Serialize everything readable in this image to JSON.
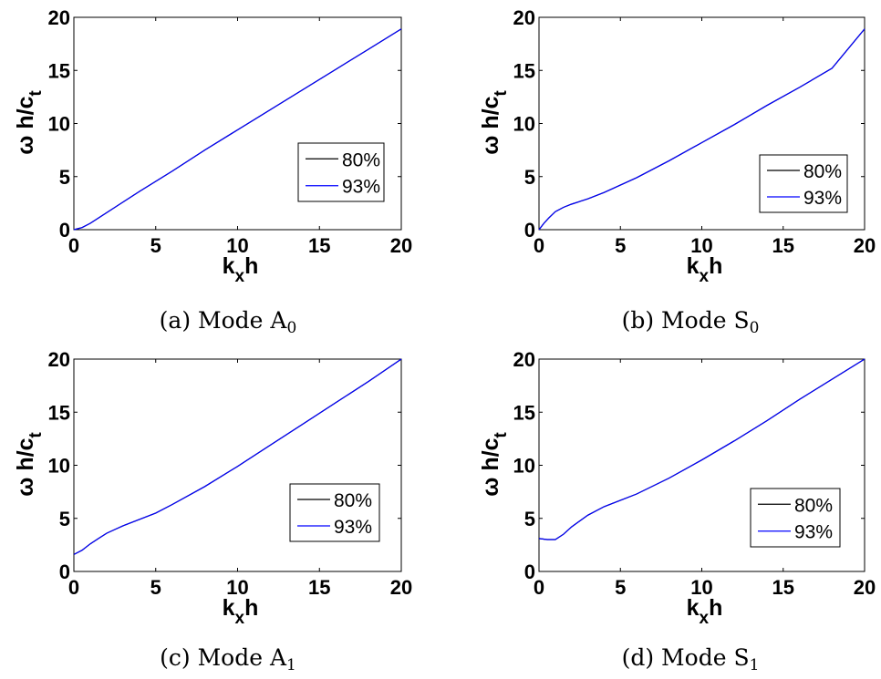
{
  "chart_data": [
    {
      "type": "line",
      "caption": {
        "prefix": "(a) Mode A",
        "sub": "0"
      },
      "xlabel": {
        "main": "k",
        "sub": "x",
        "tail": "h"
      },
      "ylabel": {
        "main": "ω h/c",
        "sub": "t"
      },
      "xlim": [
        0,
        20
      ],
      "ylim": [
        0,
        20
      ],
      "xticks": [
        0,
        5,
        10,
        15,
        20
      ],
      "yticks": [
        0,
        5,
        10,
        15,
        20
      ],
      "legend_placement": "center-right",
      "series": [
        {
          "name": "80%",
          "color": "#000000",
          "x": [
            0,
            0.5,
            1,
            2,
            4,
            6,
            8,
            10,
            12,
            14,
            16,
            18,
            20
          ],
          "y": [
            0,
            0.2,
            0.6,
            1.6,
            3.6,
            5.5,
            7.5,
            9.4,
            11.3,
            13.2,
            15.1,
            17.0,
            18.9
          ]
        },
        {
          "name": "93%",
          "color": "#0000ff",
          "x": [
            0,
            0.5,
            1,
            2,
            4,
            6,
            8,
            10,
            12,
            14,
            16,
            18,
            20
          ],
          "y": [
            0,
            0.2,
            0.6,
            1.6,
            3.6,
            5.5,
            7.5,
            9.4,
            11.3,
            13.2,
            15.1,
            17.0,
            18.9
          ]
        }
      ]
    },
    {
      "type": "line",
      "caption": {
        "prefix": "(b) Mode S",
        "sub": "0"
      },
      "xlabel": {
        "main": "k",
        "sub": "x",
        "tail": "h"
      },
      "ylabel": {
        "main": "ω h/c",
        "sub": "t"
      },
      "xlim": [
        0,
        20
      ],
      "ylim": [
        0,
        20
      ],
      "xticks": [
        0,
        5,
        10,
        15,
        20
      ],
      "yticks": [
        0,
        5,
        10,
        15,
        20
      ],
      "legend_placement": "lower-right",
      "series": [
        {
          "name": "80%",
          "color": "#000000",
          "x": [
            0,
            0.3,
            0.6,
            1,
            1.5,
            2,
            3,
            4,
            6,
            8,
            10,
            12,
            14,
            16,
            18,
            20
          ],
          "y": [
            0,
            0.6,
            1.1,
            1.7,
            2.1,
            2.4,
            2.9,
            3.5,
            4.9,
            6.5,
            8.2,
            9.9,
            11.7,
            13.4,
            15.2,
            18.9
          ]
        },
        {
          "name": "93%",
          "color": "#0000ff",
          "x": [
            0,
            0.3,
            0.6,
            1,
            1.5,
            2,
            3,
            4,
            6,
            8,
            10,
            12,
            14,
            16,
            18,
            20
          ],
          "y": [
            0,
            0.6,
            1.1,
            1.7,
            2.1,
            2.4,
            2.9,
            3.5,
            4.9,
            6.5,
            8.2,
            9.9,
            11.7,
            13.4,
            15.2,
            18.9
          ]
        }
      ]
    },
    {
      "type": "line",
      "caption": {
        "prefix": "(c) Mode A",
        "sub": "1"
      },
      "xlabel": {
        "main": "k",
        "sub": "x",
        "tail": "h"
      },
      "ylabel": {
        "main": "ω h/c",
        "sub": "t"
      },
      "xlim": [
        0,
        20
      ],
      "ylim": [
        0,
        20
      ],
      "xticks": [
        0,
        5,
        10,
        15,
        20
      ],
      "yticks": [
        0,
        5,
        10,
        15,
        20
      ],
      "legend_placement": "center-right",
      "series": [
        {
          "name": "80%",
          "color": "#000000",
          "x": [
            0,
            0.5,
            1,
            1.5,
            2,
            3,
            4,
            5,
            6,
            8,
            10,
            12,
            14,
            16,
            18,
            20
          ],
          "y": [
            1.6,
            2.0,
            2.6,
            3.1,
            3.6,
            4.3,
            4.9,
            5.5,
            6.3,
            8.0,
            9.9,
            11.9,
            13.9,
            15.9,
            17.9,
            20.0
          ]
        },
        {
          "name": "93%",
          "color": "#0000ff",
          "x": [
            0,
            0.5,
            1,
            1.5,
            2,
            3,
            4,
            5,
            6,
            8,
            10,
            12,
            14,
            16,
            18,
            20
          ],
          "y": [
            1.6,
            2.0,
            2.6,
            3.1,
            3.6,
            4.3,
            4.9,
            5.5,
            6.3,
            8.0,
            9.9,
            11.9,
            13.9,
            15.9,
            17.9,
            20.0
          ]
        }
      ]
    },
    {
      "type": "line",
      "caption": {
        "prefix": "(d) Mode S",
        "sub": "1"
      },
      "xlabel": {
        "main": "k",
        "sub": "x",
        "tail": "h"
      },
      "ylabel": {
        "main": "ω h/c",
        "sub": "t"
      },
      "xlim": [
        0,
        20
      ],
      "ylim": [
        0,
        20
      ],
      "xticks": [
        0,
        5,
        10,
        15,
        20
      ],
      "yticks": [
        0,
        5,
        10,
        15,
        20
      ],
      "legend_placement": "lower-right",
      "series": [
        {
          "name": "80%",
          "color": "#000000",
          "x": [
            0,
            0.5,
            1,
            1.5,
            2,
            3,
            4,
            5,
            6,
            8,
            10,
            12,
            14,
            16,
            18,
            20
          ],
          "y": [
            3.1,
            3.0,
            3.0,
            3.5,
            4.2,
            5.3,
            6.1,
            6.7,
            7.3,
            8.8,
            10.5,
            12.3,
            14.2,
            16.2,
            18.1,
            20.0
          ]
        },
        {
          "name": "93%",
          "color": "#0000ff",
          "x": [
            0,
            0.5,
            1,
            1.5,
            2,
            3,
            4,
            5,
            6,
            8,
            10,
            12,
            14,
            16,
            18,
            20
          ],
          "y": [
            3.1,
            3.0,
            3.0,
            3.5,
            4.2,
            5.3,
            6.1,
            6.7,
            7.3,
            8.8,
            10.5,
            12.3,
            14.2,
            16.2,
            18.1,
            20.0
          ]
        }
      ]
    }
  ]
}
